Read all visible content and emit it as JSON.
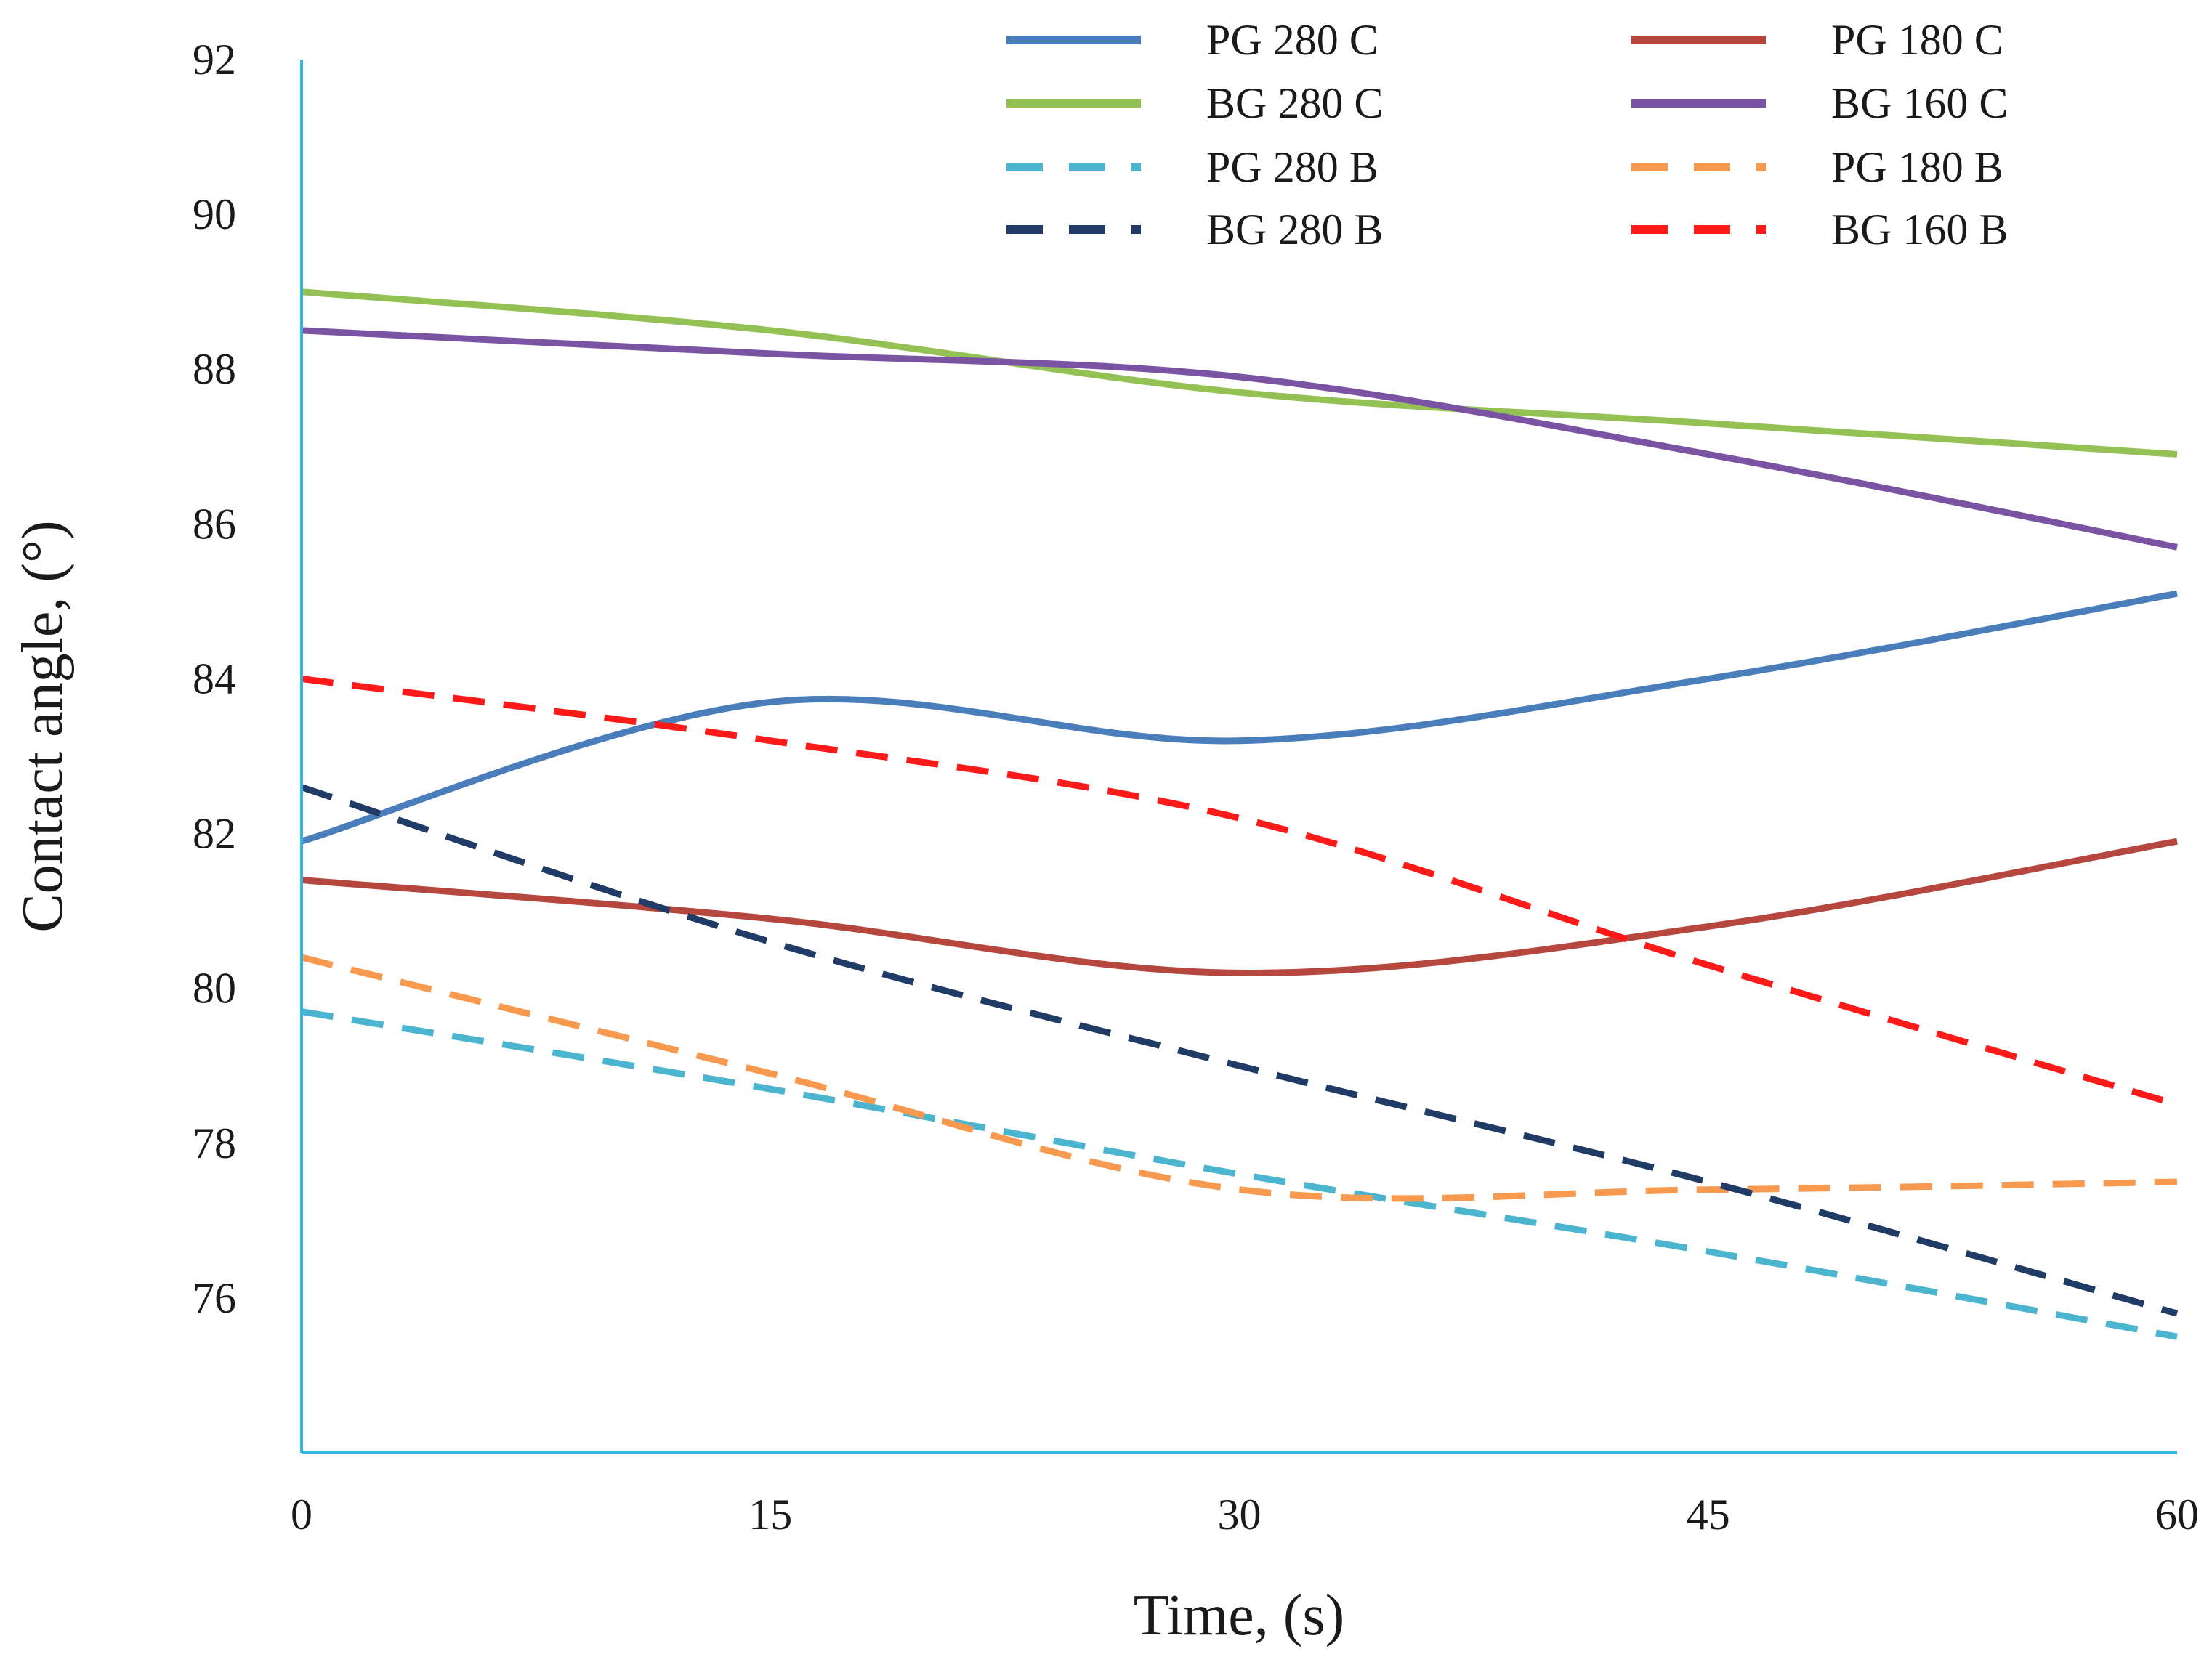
{
  "chart_data": {
    "type": "line",
    "title": "",
    "xlabel": "Time, (s)",
    "ylabel": "Contact angle, (°)",
    "xlim": [
      0,
      60
    ],
    "ylim": [
      74,
      92
    ],
    "xticks": [
      0,
      15,
      30,
      45,
      60
    ],
    "yticks": [
      76,
      78,
      80,
      82,
      84,
      86,
      88,
      90,
      92
    ],
    "grid": false,
    "legend_position": "top-right",
    "x": [
      0,
      15,
      30,
      45,
      60
    ],
    "series": [
      {
        "name": "PG 280 C",
        "color": "#4a7ebb",
        "dash": false,
        "values": [
          81.9,
          83.7,
          83.2,
          84.0,
          85.1
        ]
      },
      {
        "name": "PG 180 C",
        "color": "#b5473f",
        "dash": false,
        "values": [
          81.4,
          80.9,
          80.2,
          80.8,
          81.9
        ]
      },
      {
        "name": "BG 280 C",
        "color": "#94c154",
        "dash": false,
        "values": [
          89.0,
          88.5,
          87.7,
          87.3,
          86.9
        ]
      },
      {
        "name": "BG 160 C",
        "color": "#7a54a3",
        "dash": false,
        "values": [
          88.5,
          88.2,
          87.9,
          86.9,
          85.7
        ]
      },
      {
        "name": "PG 280 B",
        "color": "#4bb4cf",
        "dash": true,
        "values": [
          79.7,
          78.7,
          77.6,
          76.6,
          75.5
        ]
      },
      {
        "name": "PG 180 B",
        "color": "#f79a4f",
        "dash": true,
        "values": [
          80.4,
          78.9,
          77.4,
          77.4,
          77.5
        ]
      },
      {
        "name": "BG 280 B",
        "color": "#1f3b66",
        "dash": true,
        "values": [
          82.6,
          80.6,
          79.0,
          77.5,
          75.8
        ]
      },
      {
        "name": "BG 160 B",
        "color": "#ff1a1a",
        "dash": true,
        "values": [
          84.0,
          83.2,
          82.2,
          80.3,
          78.5
        ]
      }
    ]
  },
  "colors": {
    "axis": "#33b5e5",
    "text": "#1a1a1a"
  }
}
